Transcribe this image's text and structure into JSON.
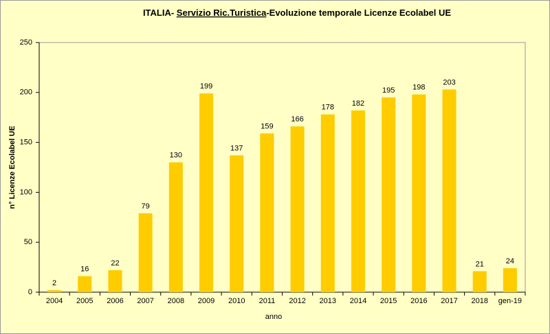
{
  "chart_data": {
    "type": "bar",
    "title": [
      "ITALIA- ",
      "Servizio Ric.Turistica",
      "-Evoluzione temporale Licenze Ecolabel UE"
    ],
    "x_label": "anno",
    "y_label": "n° Licenze Ecolabel UE",
    "categories": [
      "2004",
      "2005",
      "2006",
      "2007",
      "2008",
      "2009",
      "2010",
      "2011",
      "2012",
      "2013",
      "2014",
      "2015",
      "2016",
      "2017",
      "2018",
      "gen-19"
    ],
    "values": [
      2,
      16,
      22,
      79,
      130,
      199,
      137,
      159,
      166,
      178,
      182,
      195,
      198,
      203,
      21,
      24
    ],
    "color": "#ffcc00",
    "ylim": [
      0,
      250
    ],
    "yticks": [
      0,
      50,
      100,
      150,
      200,
      250
    ],
    "grid": false
  }
}
